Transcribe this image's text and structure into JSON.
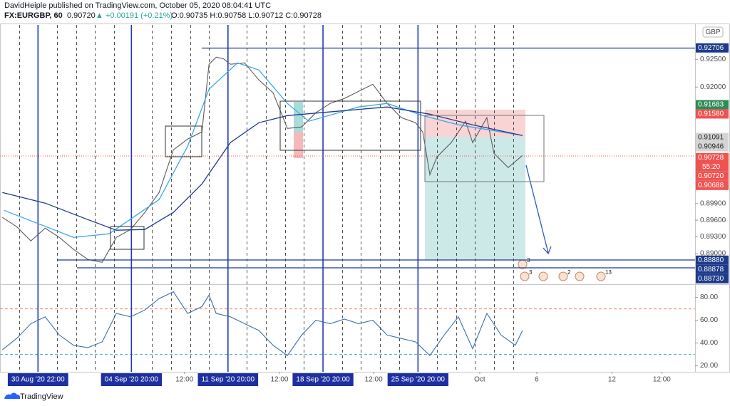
{
  "header": {
    "publisher": "DavidHeiple published on TradingView.com, October 05, 2020 08:04:41 UTC",
    "symbol": "FX:EURGBP, 60",
    "last": "0.90720",
    "change": "▲ +0.00191 (+0.21%)",
    "ohlc": "O:0.90735 H:0.90758 L:0.90712 C:0.90728"
  },
  "footer": {
    "brand": "TradingView"
  },
  "chart_data": [
    {
      "type": "line",
      "currency": "GBP",
      "xlim": [
        -48,
        830
      ],
      "ylim": [
        0.8846,
        0.9312
      ],
      "yticks": [
        {
          "value": 0.925,
          "label": "0.92500"
        },
        {
          "value": 0.92,
          "label": "0.92000"
        },
        {
          "value": 0.899,
          "label": "0.89900"
        },
        {
          "value": 0.896,
          "label": "0.89600"
        },
        {
          "value": 0.893,
          "label": "0.89300"
        },
        {
          "value": 0.89,
          "label": "0.89000"
        }
      ],
      "series": [
        {
          "color": "#5b5b5b",
          "x": [
            -45,
            -27,
            -9,
            9,
            27,
            45,
            63,
            81,
            99,
            117,
            135,
            153,
            171,
            189,
            207,
            216,
            225,
            234,
            243,
            261,
            279,
            297,
            315,
            333,
            351,
            369,
            387,
            405,
            423,
            441,
            459,
            477,
            486,
            495,
            504,
            522,
            540,
            549,
            567,
            576,
            594,
            612
          ],
          "values": [
            0.89651,
            0.89484,
            0.89227,
            0.89458,
            0.89291,
            0.89073,
            0.88893,
            0.88842,
            0.89291,
            0.89433,
            0.89741,
            0.901,
            0.9087,
            0.91063,
            0.91191,
            0.92411,
            0.92539,
            0.92513,
            0.92411,
            0.92436,
            0.92128,
            0.91897,
            0.91255,
            0.91281,
            0.91538,
            0.91705,
            0.91795,
            0.91923,
            0.92051,
            0.91705,
            0.91448,
            0.91358,
            0.91191,
            0.90421,
            0.90742,
            0.90999,
            0.91384,
            0.90999,
            0.91448,
            0.90806,
            0.90549,
            0.90768
          ]
        },
        {
          "color": "#3ea6e8",
          "x": [
            -43,
            45,
            90,
            153,
            189,
            216,
            252,
            279,
            315,
            342,
            405,
            441,
            486,
            531,
            612
          ],
          "values": [
            0.89779,
            0.89291,
            0.89356,
            0.89972,
            0.90934,
            0.91961,
            0.92436,
            0.92308,
            0.91705,
            0.91384,
            0.91641,
            0.91705,
            0.91486,
            0.9132,
            0.91127
          ]
        },
        {
          "color": "#1f3b8c",
          "x": [
            -45,
            9,
            63,
            99,
            135,
            171,
            207,
            243,
            279,
            315,
            387,
            441,
            495,
            549,
            612
          ],
          "values": [
            0.901,
            0.89908,
            0.89612,
            0.8942,
            0.89433,
            0.89741,
            0.90254,
            0.90999,
            0.91358,
            0.91486,
            0.91576,
            0.91641,
            0.91512,
            0.9132,
            0.91127
          ]
        }
      ],
      "price_labels": [
        {
          "value": 0.92706,
          "color": "#1e3a8a"
        },
        {
          "value": 0.91683,
          "color": "#2e8b57"
        },
        {
          "value": 0.9158,
          "label": "0.91580",
          "color": "#ef5350"
        },
        {
          "value": 0.91091,
          "color": "#d4d4d4"
        },
        {
          "value": 0.90946,
          "color": "#d4d4d4"
        },
        {
          "value": 0.90728,
          "color": "#ef5350",
          "countdown": "55:20"
        },
        {
          "value": 0.9072,
          "label": "0.90720",
          "color": "#ef5350"
        },
        {
          "value": 0.90688,
          "color": "#ef5350"
        },
        {
          "value": 0.8888,
          "label": "0.88880",
          "color": "#1e3a8a"
        },
        {
          "value": 0.88878,
          "color": "#1e3a8a"
        },
        {
          "value": 0.8873,
          "label": "0.88730",
          "color": "#1e3a8a"
        }
      ],
      "events": [
        "3",
        "3",
        "2",
        "13"
      ]
    },
    {
      "type": "line",
      "xlim": [
        -48,
        830
      ],
      "ylim": [
        16,
        91
      ],
      "yticks": [
        {
          "value": 80,
          "label": "80.00"
        },
        {
          "value": 60,
          "label": "60.00"
        },
        {
          "value": 40,
          "label": "40.00"
        },
        {
          "value": 20,
          "label": "20.00"
        }
      ],
      "bands": [
        {
          "value": 70,
          "color": "#e8845a"
        },
        {
          "value": 30,
          "color": "#4aa3c9"
        }
      ],
      "xticks": [
        {
          "value": 0,
          "label": "30 Aug '20  22:00",
          "highlight": true
        },
        {
          "value": 118,
          "label": "04 Sep '20  20:00",
          "highlight": true
        },
        {
          "value": 185,
          "label": "12:00"
        },
        {
          "value": 240,
          "label": "11 Sep '20  20:00",
          "highlight": true
        },
        {
          "value": 305,
          "label": "12:00"
        },
        {
          "value": 360,
          "label": "18 Sep '20  20:00",
          "highlight": true
        },
        {
          "value": 424,
          "label": "12:00"
        },
        {
          "value": 480,
          "label": "25 Sep '20  20:00",
          "highlight": true
        },
        {
          "value": 558,
          "label": "Oct"
        },
        {
          "value": 630,
          "label": "6"
        },
        {
          "value": 725,
          "label": "12"
        },
        {
          "value": 788,
          "label": "12:00"
        }
      ],
      "series": [
        {
          "color": "#3b6fa8",
          "x": [
            -45,
            -27,
            -9,
            9,
            27,
            45,
            63,
            81,
            99,
            117,
            135,
            153,
            171,
            189,
            207,
            216,
            225,
            243,
            261,
            279,
            297,
            315,
            333,
            351,
            369,
            387,
            405,
            423,
            441,
            459,
            477,
            495,
            513,
            531,
            549,
            567,
            585,
            603,
            612
          ],
          "values": [
            34,
            44,
            57,
            63,
            47,
            38,
            36,
            41,
            66,
            63,
            69,
            79,
            85,
            66,
            72,
            82,
            66,
            63,
            57,
            51,
            38,
            29,
            47,
            60,
            57,
            61,
            57,
            60,
            47,
            44,
            41,
            29,
            47,
            63,
            35,
            66,
            47,
            38,
            51
          ]
        }
      ]
    }
  ]
}
